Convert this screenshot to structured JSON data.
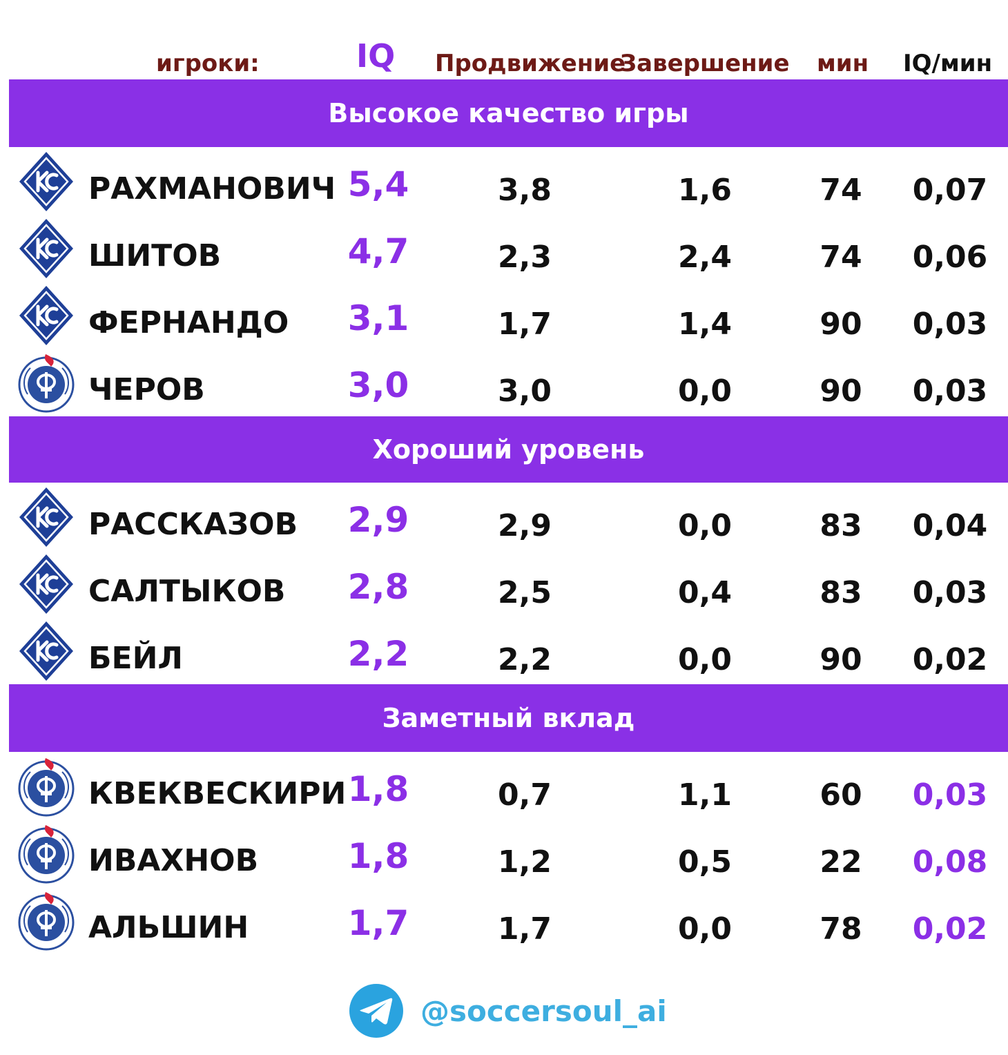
{
  "headers": {
    "players": "игроки:",
    "iq": "IQ",
    "progression": "Продвижение",
    "finishing": "Завершение",
    "minutes": "мин",
    "iq_per_min": "IQ/мин"
  },
  "sections": [
    {
      "title": "Высокое  качество игры",
      "rows": [
        {
          "logo": "krylia-sovetov-logo",
          "name": "РАХМАНОВИЧ",
          "iq": "5,4",
          "progression": "3,8",
          "finishing": "1,6",
          "minutes": "74",
          "iq_per_min": "0,07"
        },
        {
          "logo": "krylia-sovetov-logo",
          "name": "ШИТОВ",
          "iq": "4,7",
          "progression": "2,3",
          "finishing": "2,4",
          "minutes": "74",
          "iq_per_min": "0,06"
        },
        {
          "logo": "krylia-sovetov-logo",
          "name": "ФЕРНАНДО",
          "iq": "3,1",
          "progression": "1,7",
          "finishing": "1,4",
          "minutes": "90",
          "iq_per_min": "0,03"
        },
        {
          "logo": "fakel-logo",
          "name": "ЧЕРОВ",
          "iq": "3,0",
          "progression": "3,0",
          "finishing": "0,0",
          "minutes": "90",
          "iq_per_min": "0,03"
        }
      ]
    },
    {
      "title": "Хороший уровень",
      "rows": [
        {
          "logo": "krylia-sovetov-logo",
          "name": "РАССКАЗОВ",
          "iq": "2,9",
          "progression": "2,9",
          "finishing": "0,0",
          "minutes": "83",
          "iq_per_min": "0,04"
        },
        {
          "logo": "krylia-sovetov-logo",
          "name": "САЛТЫКОВ",
          "iq": "2,8",
          "progression": "2,5",
          "finishing": "0,4",
          "minutes": "83",
          "iq_per_min": "0,03"
        },
        {
          "logo": "krylia-sovetov-logo",
          "name": "БЕЙЛ",
          "iq": "2,2",
          "progression": "2,2",
          "finishing": "0,0",
          "minutes": "90",
          "iq_per_min": "0,02"
        }
      ]
    },
    {
      "title": "Заметный вклад",
      "rows": [
        {
          "logo": "fakel-logo",
          "name": "КВЕКВЕСКИРИ",
          "iq": "1,8",
          "progression": "0,7",
          "finishing": "1,1",
          "minutes": "60",
          "iq_per_min": "0,03"
        },
        {
          "logo": "fakel-logo",
          "name": "ИВАХНОВ",
          "iq": "1,8",
          "progression": "1,2",
          "finishing": "0,5",
          "minutes": "22",
          "iq_per_min": "0,08"
        },
        {
          "logo": "fakel-logo",
          "name": "АЛЬШИН",
          "iq": "1,7",
          "progression": "1,7",
          "finishing": "0,0",
          "minutes": "78",
          "iq_per_min": "0,02"
        }
      ]
    }
  ],
  "footer": {
    "icon": "telegram-icon",
    "handle": "@soccersoul_ai"
  },
  "colors": {
    "band": "#8a30e6",
    "iq_value": "#8b2fe6",
    "header": "#6d1a16",
    "handle": "#3eaee0",
    "krylia_blue": "#1e3f97",
    "fakel_blue": "#2b4fa0",
    "fakel_flame": "#d8233a"
  }
}
